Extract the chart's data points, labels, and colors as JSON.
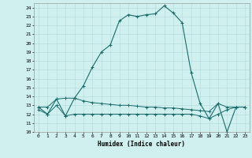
{
  "xlabel": "Humidex (Indice chaleur)",
  "background_color": "#cff0ee",
  "grid_color": "#b8dede",
  "line_color": "#1a6b6b",
  "xlim": [
    -0.5,
    23.5
  ],
  "ylim": [
    10,
    24.5
  ],
  "yticks": [
    10,
    11,
    12,
    13,
    14,
    15,
    16,
    17,
    18,
    19,
    20,
    21,
    22,
    23,
    24
  ],
  "xticks": [
    0,
    1,
    2,
    3,
    4,
    5,
    6,
    7,
    8,
    9,
    10,
    11,
    12,
    13,
    14,
    15,
    16,
    17,
    18,
    19,
    20,
    21,
    22,
    23
  ],
  "line1_x": [
    0,
    1,
    2,
    3,
    4,
    5,
    6,
    7,
    8,
    9,
    10,
    11,
    12,
    13,
    14,
    15,
    16,
    17,
    18,
    19,
    20,
    21,
    22,
    23
  ],
  "line1_y": [
    12.8,
    12.0,
    13.7,
    11.8,
    13.8,
    15.2,
    17.3,
    19.0,
    19.8,
    22.5,
    23.2,
    23.0,
    23.2,
    23.3,
    24.2,
    23.4,
    22.3,
    16.7,
    13.2,
    11.5,
    13.2,
    10.0,
    12.8,
    12.8
  ],
  "line2_x": [
    0,
    1,
    2,
    3,
    4,
    5,
    6,
    7,
    8,
    9,
    10,
    11,
    12,
    13,
    14,
    15,
    16,
    17,
    18,
    19,
    20,
    21,
    22,
    23
  ],
  "line2_y": [
    12.8,
    12.8,
    13.7,
    13.8,
    13.8,
    13.5,
    13.3,
    13.2,
    13.1,
    13.0,
    13.0,
    12.9,
    12.8,
    12.8,
    12.7,
    12.7,
    12.6,
    12.5,
    12.4,
    12.3,
    13.2,
    12.8,
    12.8,
    12.8
  ],
  "line3_x": [
    0,
    1,
    2,
    3,
    4,
    5,
    6,
    7,
    8,
    9,
    10,
    11,
    12,
    13,
    14,
    15,
    16,
    17,
    18,
    19,
    20,
    21,
    22,
    23
  ],
  "line3_y": [
    12.5,
    12.0,
    13.0,
    11.8,
    12.0,
    12.0,
    12.0,
    12.0,
    12.0,
    12.0,
    12.0,
    12.0,
    12.0,
    12.0,
    12.0,
    12.0,
    12.0,
    12.0,
    11.8,
    11.5,
    12.0,
    12.5,
    12.8,
    12.8
  ]
}
